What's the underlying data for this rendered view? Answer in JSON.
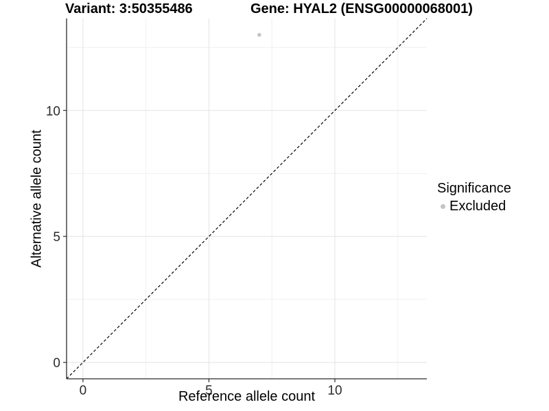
{
  "titles": {
    "variant": "Variant: 3:50355486",
    "gene": "Gene: HYAL2 (ENSG00000068001)"
  },
  "legend": {
    "title": "Significance",
    "items": [
      {
        "label": "Excluded",
        "color": "#c4c4c4",
        "marker": "circle"
      }
    ]
  },
  "chart_data": {
    "type": "scatter",
    "titles": [
      "Variant: 3:50355486",
      "Gene: HYAL2 (ENSG00000068001)"
    ],
    "xlabel": "Reference allele count",
    "ylabel": "Alternative allele count",
    "xlim": [
      -0.65,
      13.65
    ],
    "ylim": [
      -0.65,
      13.65
    ],
    "x_ticks": [
      0,
      5,
      10
    ],
    "y_ticks": [
      0,
      5,
      10
    ],
    "x_minor_ticks": [
      2.5,
      7.5,
      12.5
    ],
    "y_minor_ticks": [
      2.5,
      7.5,
      12.5
    ],
    "grid": true,
    "legend_position": "right",
    "series": [
      {
        "name": "Excluded",
        "color": "#c4c4c4",
        "points": [
          {
            "x": 7,
            "y": 13
          }
        ]
      }
    ],
    "reference_line": {
      "type": "identity y=x",
      "style": "dashed",
      "color": "#000000"
    }
  },
  "colors": {
    "background": "#ffffff",
    "grid_major": "#e3e3e3",
    "grid_minor": "#f0f0f0",
    "axis_line": "#2a2a2a",
    "tick_label": "#2b2b2b",
    "title_text": "#000000",
    "point": "#c4c4c4"
  }
}
